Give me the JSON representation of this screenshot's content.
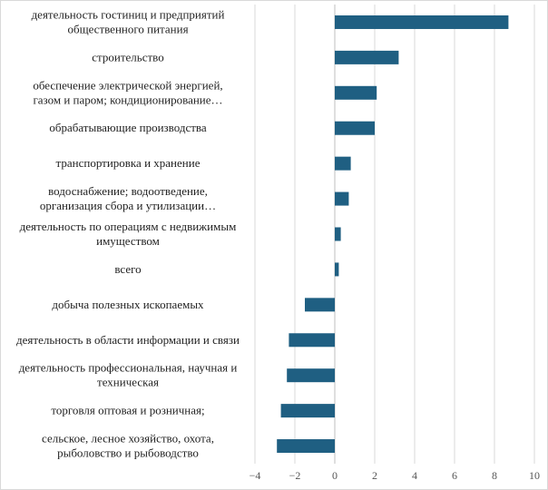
{
  "chart_data": {
    "type": "bar",
    "orientation": "horizontal",
    "categories": [
      [
        "деятельность гостиниц и предприятий",
        "общественного питания"
      ],
      [
        "строительство"
      ],
      [
        "обеспечение электрической энергией,",
        "газом и паром; кондиционирование…"
      ],
      [
        "обрабатывающие производства"
      ],
      [
        "транспортировка и хранение"
      ],
      [
        "водоснабжение; водоотведение,",
        "организация сбора и утилизации…"
      ],
      [
        "деятельность по операциям с недвижимым",
        "имуществом"
      ],
      [
        "всего"
      ],
      [
        "добыча полезных ископаемых"
      ],
      [
        "деятельность в области информации и связи"
      ],
      [
        "деятельность профессиональная, научная и",
        "техническая"
      ],
      [
        "торговля оптовая и розничная;"
      ],
      [
        "сельское, лесное хозяйство, охота,",
        "рыболовство и  рыбоводство"
      ]
    ],
    "values": [
      8.7,
      3.2,
      2.1,
      2.0,
      0.8,
      0.7,
      0.3,
      0.2,
      -1.5,
      -2.3,
      -2.4,
      -2.7,
      -2.9
    ],
    "xlim": [
      -4,
      10
    ],
    "xticks": [
      -4,
      -2,
      0,
      2,
      4,
      6,
      8,
      10
    ],
    "xtick_labels": [
      "−4",
      "−2",
      "0",
      "2",
      "4",
      "6",
      "8",
      "10"
    ],
    "bar_color": "#1f5f82",
    "grid": "vertical",
    "legend": "none",
    "title": "",
    "xlabel": "",
    "ylabel": ""
  }
}
